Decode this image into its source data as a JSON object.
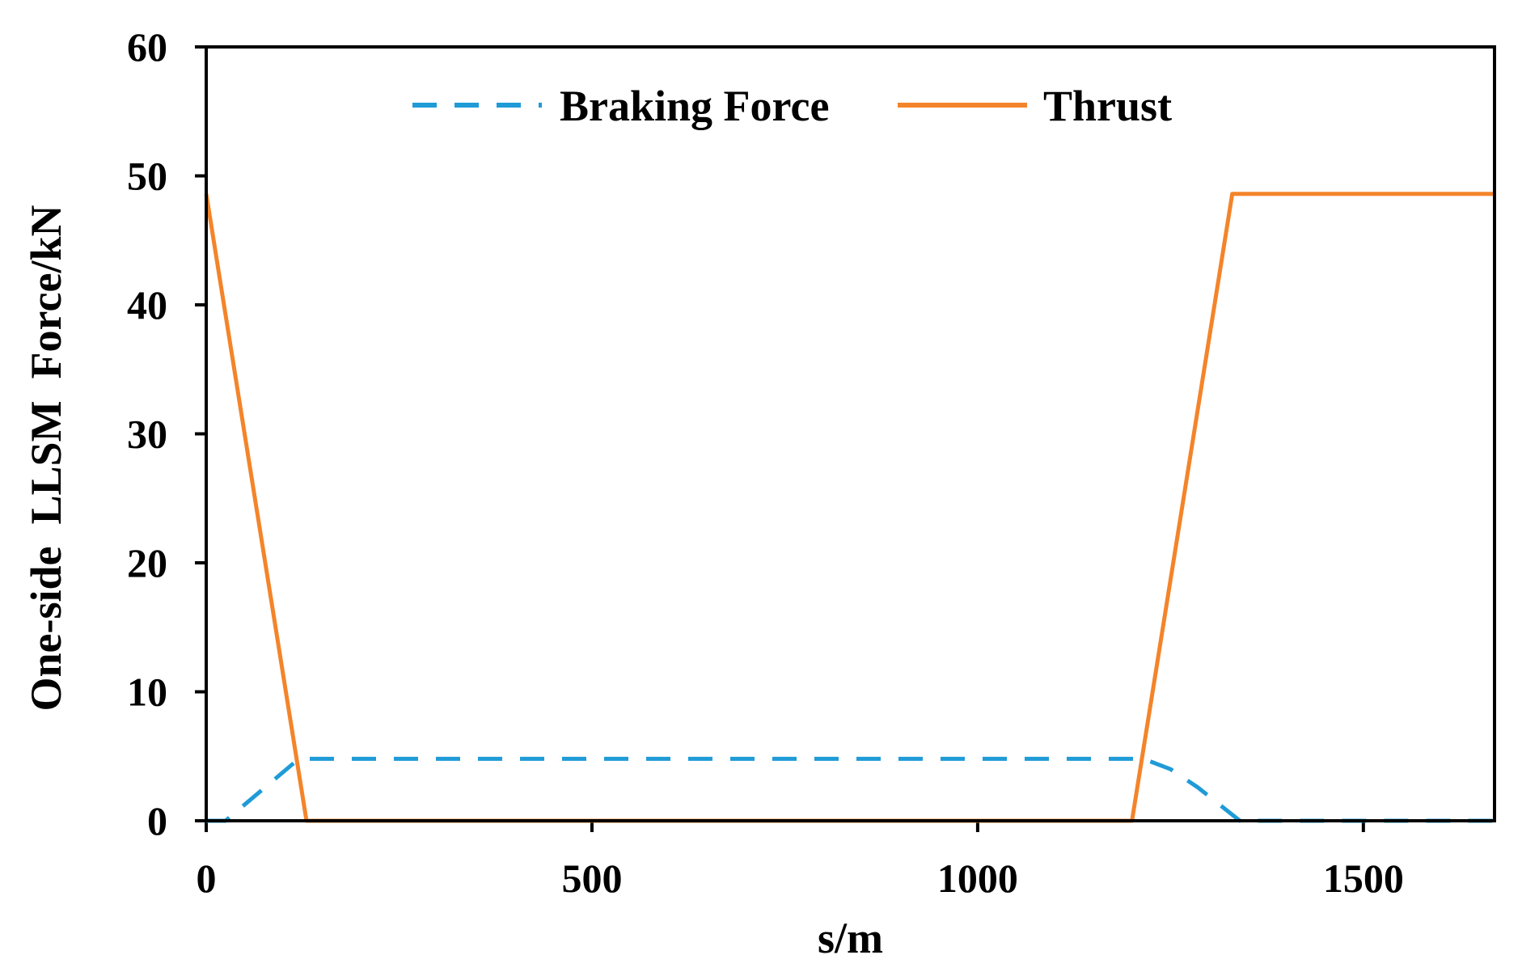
{
  "chart_data": {
    "type": "line",
    "title": "",
    "xlabel": "s/m",
    "ylabel": "One-side  LLSM  Force/kN",
    "xlim": [
      0,
      1670
    ],
    "ylim": [
      0,
      60
    ],
    "xticks": [
      0,
      500,
      1000,
      1500
    ],
    "xtick_labels": [
      "0",
      "500",
      "1000",
      "1500"
    ],
    "yticks": [
      0,
      10,
      20,
      30,
      40,
      50,
      60
    ],
    "ytick_labels": [
      "0",
      "10",
      "20",
      "30",
      "40",
      "50",
      "60"
    ],
    "grid": false,
    "legend_position": "top",
    "series": [
      {
        "name": "Braking Force",
        "style": "dashed",
        "color": "#1f9bd7",
        "x": [
          0,
          25,
          120,
          1215,
          1250,
          1285,
          1340,
          1670
        ],
        "y": [
          0,
          0,
          4.8,
          4.8,
          4.0,
          2.6,
          0,
          0
        ]
      },
      {
        "name": "Thrust",
        "style": "solid",
        "color": "#f4842a",
        "x": [
          0,
          130,
          1200,
          1330,
          1670
        ],
        "y": [
          48.6,
          0,
          0,
          48.6,
          48.6
        ]
      }
    ]
  }
}
